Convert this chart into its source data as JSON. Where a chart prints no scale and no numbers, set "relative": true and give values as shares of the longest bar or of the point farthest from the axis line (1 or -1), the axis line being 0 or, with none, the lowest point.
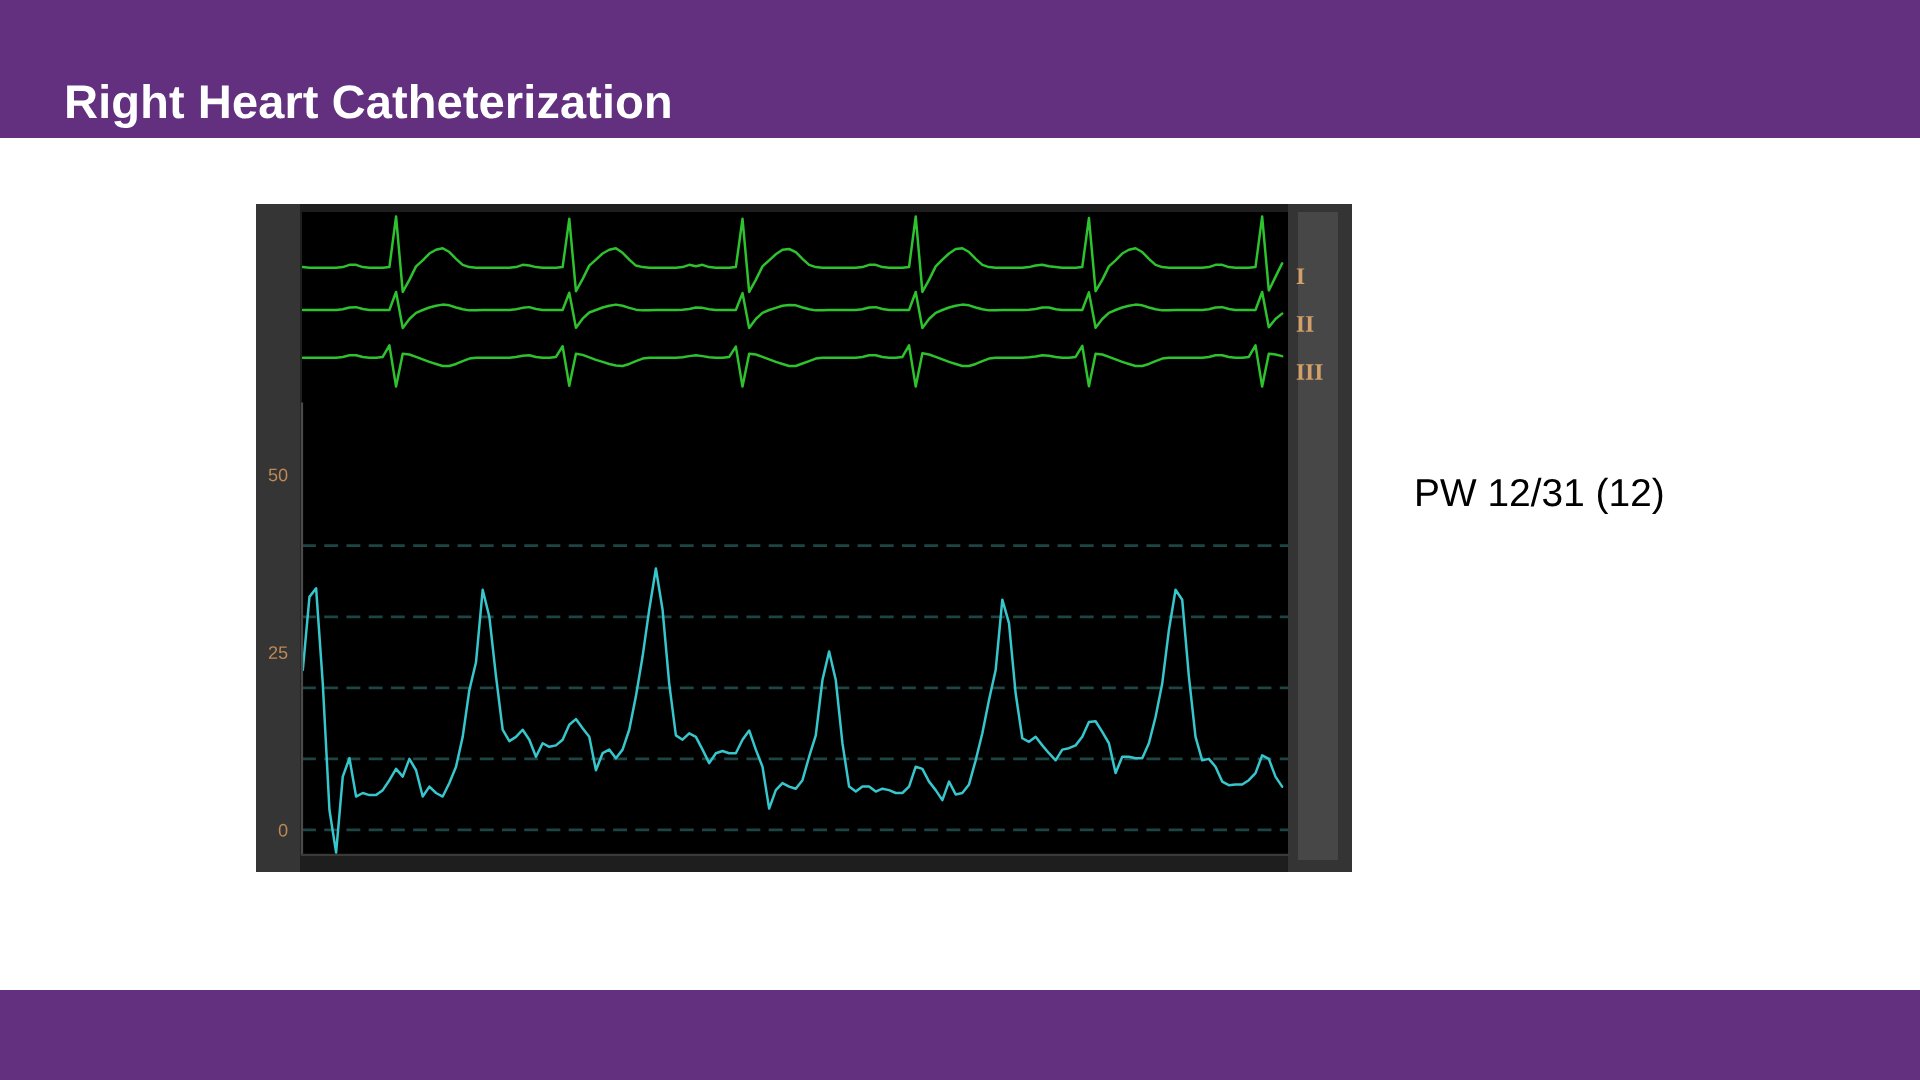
{
  "chart_data": [
    {
      "type": "line",
      "title": "Right Heart Catheterization",
      "relative": true,
      "tick_labels": false,
      "marker": "none",
      "line_style": "solid",
      "grid": false,
      "legend": false,
      "categories": [
        null,
        null,
        null,
        null,
        null,
        null,
        null,
        null,
        null,
        null,
        null,
        null,
        null,
        null,
        null,
        null,
        null,
        null,
        null,
        null,
        null,
        null,
        null,
        null,
        null,
        null,
        null,
        null,
        null,
        null,
        null,
        null,
        null,
        null,
        null,
        null,
        null,
        null,
        null,
        null,
        null,
        null,
        null,
        null,
        null,
        null,
        null,
        null,
        null,
        null,
        null,
        null,
        null,
        null,
        null,
        null,
        null,
        null,
        null,
        null,
        null,
        null,
        null,
        null,
        null,
        null,
        null,
        null,
        null,
        null,
        null,
        null,
        null,
        null,
        null,
        null,
        null,
        null,
        null,
        null,
        null,
        null,
        null,
        null,
        null,
        null,
        null,
        null,
        null,
        null,
        null,
        null,
        null,
        null,
        null,
        null,
        null,
        null,
        null,
        null,
        null,
        null,
        null,
        null,
        null,
        null,
        null,
        null,
        null,
        null,
        null,
        null,
        null,
        null,
        null,
        null,
        null,
        null,
        null,
        null,
        null,
        null,
        null,
        null,
        null,
        null,
        null,
        null,
        null,
        null,
        null,
        null,
        null,
        null,
        null,
        null,
        null,
        null,
        null,
        null,
        null,
        null,
        null,
        null,
        null,
        null,
        null,
        null
      ],
      "series": [
        {
          "name": "I",
          "color": "#2ec22e",
          "values": [
            0.33,
            0.32,
            0.32,
            0.32,
            0.32,
            0.32,
            0.33,
            0.36,
            0.36,
            0.33,
            0.32,
            0.32,
            0.32,
            0.33,
            1.0,
            0.0,
            0.16,
            0.34,
            0.42,
            0.51,
            0.56,
            0.58,
            0.53,
            0.44,
            0.36,
            0.33,
            0.32,
            0.32,
            0.32,
            0.32,
            0.32,
            0.32,
            0.33,
            0.36,
            0.35,
            0.33,
            0.32,
            0.32,
            0.32,
            0.33,
            0.97,
            0.01,
            0.17,
            0.35,
            0.43,
            0.51,
            0.56,
            0.58,
            0.52,
            0.43,
            0.35,
            0.33,
            0.32,
            0.32,
            0.32,
            0.32,
            0.32,
            0.33,
            0.36,
            0.34,
            0.36,
            0.33,
            0.32,
            0.32,
            0.32,
            0.33,
            0.97,
            0.0,
            0.16,
            0.34,
            0.42,
            0.5,
            0.56,
            0.57,
            0.53,
            0.44,
            0.36,
            0.33,
            0.32,
            0.32,
            0.32,
            0.32,
            0.32,
            0.32,
            0.33,
            0.36,
            0.36,
            0.33,
            0.32,
            0.32,
            0.32,
            0.33,
            1.0,
            0.0,
            0.16,
            0.34,
            0.43,
            0.51,
            0.57,
            0.58,
            0.53,
            0.44,
            0.36,
            0.33,
            0.32,
            0.32,
            0.32,
            0.32,
            0.32,
            0.33,
            0.35,
            0.36,
            0.34,
            0.33,
            0.32,
            0.32,
            0.32,
            0.33,
            0.98,
            0.01,
            0.16,
            0.34,
            0.42,
            0.51,
            0.56,
            0.58,
            0.53,
            0.44,
            0.36,
            0.33,
            0.32,
            0.32,
            0.32,
            0.32,
            0.32,
            0.32,
            0.33,
            0.36,
            0.36,
            0.33,
            0.32,
            0.32,
            0.32,
            0.33,
            1.0,
            0.02,
            0.2,
            0.38
          ]
        }
      ]
    },
    {
      "type": "line",
      "relative": true,
      "tick_labels": false,
      "marker": "none",
      "line_style": "solid",
      "grid": false,
      "legend": false,
      "categories": [
        null,
        null,
        null,
        null,
        null,
        null,
        null,
        null,
        null,
        null,
        null,
        null,
        null,
        null,
        null,
        null,
        null,
        null,
        null,
        null,
        null,
        null,
        null,
        null,
        null,
        null,
        null,
        null,
        null,
        null,
        null,
        null,
        null,
        null,
        null,
        null,
        null,
        null,
        null,
        null,
        null,
        null,
        null,
        null,
        null,
        null,
        null,
        null,
        null,
        null,
        null,
        null,
        null,
        null,
        null,
        null,
        null,
        null,
        null,
        null,
        null,
        null,
        null,
        null,
        null,
        null,
        null,
        null,
        null,
        null,
        null,
        null,
        null,
        null,
        null,
        null,
        null,
        null,
        null,
        null,
        null,
        null,
        null,
        null,
        null,
        null,
        null,
        null,
        null,
        null,
        null,
        null,
        null,
        null,
        null,
        null,
        null,
        null,
        null,
        null,
        null,
        null,
        null,
        null,
        null,
        null,
        null,
        null,
        null,
        null,
        null,
        null,
        null,
        null,
        null,
        null,
        null,
        null,
        null,
        null,
        null,
        null,
        null,
        null,
        null,
        null,
        null,
        null,
        null,
        null,
        null,
        null,
        null,
        null,
        null,
        null,
        null,
        null,
        null,
        null,
        null,
        null,
        null,
        null,
        null,
        null,
        null,
        null
      ],
      "series": [
        {
          "name": "II",
          "color": "#2ec22e",
          "values": [
            0.5,
            0.5,
            0.5,
            0.5,
            0.5,
            0.5,
            0.52,
            0.57,
            0.58,
            0.53,
            0.5,
            0.5,
            0.5,
            0.5,
            1.0,
            0.0,
            0.25,
            0.42,
            0.5,
            0.57,
            0.62,
            0.65,
            0.63,
            0.57,
            0.52,
            0.49,
            0.49,
            0.5,
            0.5,
            0.5,
            0.5,
            0.5,
            0.52,
            0.56,
            0.58,
            0.53,
            0.5,
            0.5,
            0.5,
            0.5,
            0.98,
            0.01,
            0.26,
            0.43,
            0.5,
            0.57,
            0.62,
            0.65,
            0.62,
            0.56,
            0.51,
            0.49,
            0.49,
            0.5,
            0.5,
            0.5,
            0.5,
            0.51,
            0.53,
            0.57,
            0.56,
            0.52,
            0.5,
            0.5,
            0.5,
            0.5,
            0.97,
            0.0,
            0.25,
            0.42,
            0.5,
            0.56,
            0.62,
            0.64,
            0.63,
            0.57,
            0.52,
            0.49,
            0.49,
            0.5,
            0.5,
            0.5,
            0.5,
            0.5,
            0.52,
            0.57,
            0.58,
            0.53,
            0.5,
            0.5,
            0.5,
            0.5,
            1.0,
            0.0,
            0.25,
            0.42,
            0.5,
            0.57,
            0.62,
            0.65,
            0.63,
            0.57,
            0.52,
            0.49,
            0.49,
            0.5,
            0.5,
            0.5,
            0.5,
            0.51,
            0.53,
            0.57,
            0.57,
            0.52,
            0.5,
            0.5,
            0.5,
            0.5,
            0.99,
            0.01,
            0.25,
            0.42,
            0.5,
            0.57,
            0.62,
            0.65,
            0.63,
            0.57,
            0.52,
            0.49,
            0.49,
            0.5,
            0.5,
            0.5,
            0.5,
            0.5,
            0.52,
            0.57,
            0.58,
            0.53,
            0.5,
            0.5,
            0.5,
            0.5,
            1.0,
            0.02,
            0.25,
            0.4
          ]
        }
      ]
    },
    {
      "type": "line",
      "relative": true,
      "tick_labels": false,
      "marker": "none",
      "line_style": "solid",
      "grid": false,
      "legend": false,
      "categories": [
        null,
        null,
        null,
        null,
        null,
        null,
        null,
        null,
        null,
        null,
        null,
        null,
        null,
        null,
        null,
        null,
        null,
        null,
        null,
        null,
        null,
        null,
        null,
        null,
        null,
        null,
        null,
        null,
        null,
        null,
        null,
        null,
        null,
        null,
        null,
        null,
        null,
        null,
        null,
        null,
        null,
        null,
        null,
        null,
        null,
        null,
        null,
        null,
        null,
        null,
        null,
        null,
        null,
        null,
        null,
        null,
        null,
        null,
        null,
        null,
        null,
        null,
        null,
        null,
        null,
        null,
        null,
        null,
        null,
        null,
        null,
        null,
        null,
        null,
        null,
        null,
        null,
        null,
        null,
        null,
        null,
        null,
        null,
        null,
        null,
        null,
        null,
        null,
        null,
        null,
        null,
        null,
        null,
        null,
        null,
        null,
        null,
        null,
        null,
        null,
        null,
        null,
        null,
        null,
        null,
        null,
        null,
        null,
        null,
        null,
        null,
        null,
        null,
        null,
        null,
        null,
        null,
        null,
        null,
        null,
        null,
        null,
        null,
        null,
        null,
        null,
        null,
        null,
        null,
        null,
        null,
        null,
        null,
        null,
        null,
        null,
        null,
        null,
        null,
        null,
        null,
        null,
        null,
        null,
        null,
        null,
        null,
        null
      ],
      "series": [
        {
          "name": "III",
          "color": "#2ec22e",
          "values": [
            0.7,
            0.7,
            0.7,
            0.7,
            0.7,
            0.7,
            0.72,
            0.76,
            0.76,
            0.72,
            0.7,
            0.7,
            0.72,
            1.0,
            0.0,
            0.8,
            0.78,
            0.72,
            0.66,
            0.6,
            0.55,
            0.5,
            0.5,
            0.55,
            0.62,
            0.68,
            0.7,
            0.7,
            0.7,
            0.7,
            0.7,
            0.7,
            0.72,
            0.75,
            0.76,
            0.72,
            0.7,
            0.7,
            0.72,
            0.98,
            0.02,
            0.8,
            0.77,
            0.71,
            0.65,
            0.6,
            0.55,
            0.51,
            0.5,
            0.55,
            0.62,
            0.68,
            0.7,
            0.7,
            0.7,
            0.7,
            0.7,
            0.71,
            0.74,
            0.76,
            0.74,
            0.71,
            0.7,
            0.7,
            0.72,
            0.97,
            0.0,
            0.8,
            0.78,
            0.72,
            0.66,
            0.6,
            0.55,
            0.5,
            0.5,
            0.56,
            0.62,
            0.68,
            0.7,
            0.7,
            0.7,
            0.7,
            0.7,
            0.7,
            0.72,
            0.76,
            0.76,
            0.72,
            0.7,
            0.7,
            0.72,
            1.0,
            0.0,
            0.81,
            0.78,
            0.72,
            0.66,
            0.6,
            0.55,
            0.5,
            0.5,
            0.55,
            0.62,
            0.68,
            0.7,
            0.7,
            0.7,
            0.7,
            0.7,
            0.71,
            0.73,
            0.76,
            0.75,
            0.72,
            0.7,
            0.7,
            0.72,
            0.99,
            0.01,
            0.8,
            0.78,
            0.72,
            0.66,
            0.6,
            0.55,
            0.5,
            0.5,
            0.55,
            0.62,
            0.68,
            0.7,
            0.7,
            0.7,
            0.7,
            0.7,
            0.7,
            0.72,
            0.76,
            0.76,
            0.72,
            0.7,
            0.7,
            0.72,
            1.0,
            0.0,
            0.8,
            0.78,
            0.74
          ]
        }
      ]
    },
    {
      "type": "line",
      "tick_labels": "y",
      "marker": "none",
      "line_style": "solid",
      "grid": false,
      "legend": false,
      "ylim": [
        -3.5,
        60
      ],
      "yticks": [
        0,
        25,
        50
      ],
      "ref_lines": [
        {
          "axis": "y",
          "value": 0,
          "color": "#1d4543",
          "line_style": "dashed"
        },
        {
          "axis": "y",
          "value": 10,
          "color": "#1d4543",
          "line_style": "dashed"
        },
        {
          "axis": "y",
          "value": 20,
          "color": "#1d4543",
          "line_style": "dashed"
        },
        {
          "axis": "y",
          "value": 30,
          "color": "#1d4543",
          "line_style": "dashed"
        },
        {
          "axis": "y",
          "value": 40,
          "color": "#1d4543",
          "line_style": "dashed"
        }
      ],
      "annotations": [
        "PW 12/31 (12)"
      ],
      "categories": [
        null,
        null,
        null,
        null,
        null,
        null,
        null,
        null,
        null,
        null,
        null,
        null,
        null,
        null,
        null,
        null,
        null,
        null,
        null,
        null,
        null,
        null,
        null,
        null,
        null,
        null,
        null,
        null,
        null,
        null,
        null,
        null,
        null,
        null,
        null,
        null,
        null,
        null,
        null,
        null,
        null,
        null,
        null,
        null,
        null,
        null,
        null,
        null,
        null,
        null,
        null,
        null,
        null,
        null,
        null,
        null,
        null,
        null,
        null,
        null,
        null,
        null,
        null,
        null,
        null,
        null,
        null,
        null,
        null,
        null,
        null,
        null,
        null,
        null,
        null,
        null,
        null,
        null,
        null,
        null,
        null,
        null,
        null,
        null,
        null,
        null,
        null,
        null,
        null,
        null,
        null,
        null,
        null,
        null,
        null,
        null,
        null,
        null,
        null,
        null,
        null,
        null,
        null,
        null,
        null,
        null,
        null,
        null,
        null,
        null,
        null,
        null,
        null,
        null,
        null,
        null,
        null,
        null,
        null,
        null,
        null,
        null,
        null,
        null,
        null,
        null,
        null,
        null,
        null,
        null,
        null,
        null,
        null,
        null,
        null,
        null,
        null,
        null,
        null,
        null,
        null,
        null,
        null,
        null,
        null,
        null,
        null,
        null
      ],
      "series": [
        {
          "color": "#36c6cc",
          "values": [
            22.5,
            32.8,
            34.0,
            20.6,
            2.8,
            -3.2,
            7.5,
            10.1,
            4.7,
            5.2,
            4.9,
            4.9,
            5.6,
            7.0,
            8.6,
            7.5,
            10.0,
            8.4,
            4.7,
            6.1,
            5.2,
            4.7,
            6.6,
            8.9,
            13.1,
            19.7,
            23.6,
            33.8,
            30.0,
            21.6,
            14.1,
            12.5,
            13.1,
            14.1,
            12.7,
            10.3,
            12.2,
            11.7,
            11.9,
            12.7,
            14.8,
            15.6,
            14.3,
            13.1,
            8.4,
            10.8,
            11.3,
            10.1,
            11.3,
            14.1,
            18.8,
            24.4,
            31.0,
            36.8,
            31.0,
            20.6,
            13.3,
            12.7,
            13.6,
            13.1,
            11.3,
            9.4,
            10.8,
            11.1,
            10.8,
            10.8,
            12.7,
            14.0,
            11.3,
            8.9,
            3.0,
            5.6,
            6.6,
            6.1,
            5.8,
            7.0,
            10.3,
            13.3,
            21.1,
            25.1,
            21.1,
            12.2,
            6.1,
            5.4,
            6.1,
            6.1,
            5.4,
            5.8,
            5.6,
            5.2,
            5.2,
            6.1,
            8.9,
            8.6,
            6.8,
            5.6,
            4.2,
            6.8,
            5.0,
            5.2,
            6.4,
            9.8,
            13.6,
            18.3,
            22.5,
            32.4,
            29.1,
            19.2,
            12.9,
            12.4,
            13.1,
            11.9,
            10.8,
            9.8,
            11.3,
            11.5,
            11.9,
            13.1,
            15.2,
            15.3,
            13.8,
            12.2,
            8.0,
            10.3,
            10.3,
            10.1,
            10.1,
            12.2,
            15.9,
            20.6,
            28.1,
            33.8,
            32.4,
            21.6,
            13.1,
            9.8,
            10.0,
            8.9,
            6.8,
            6.3,
            6.4,
            6.4,
            7.0,
            8.0,
            10.5,
            10.0,
            7.5,
            6.1
          ]
        }
      ]
    }
  ]
}
